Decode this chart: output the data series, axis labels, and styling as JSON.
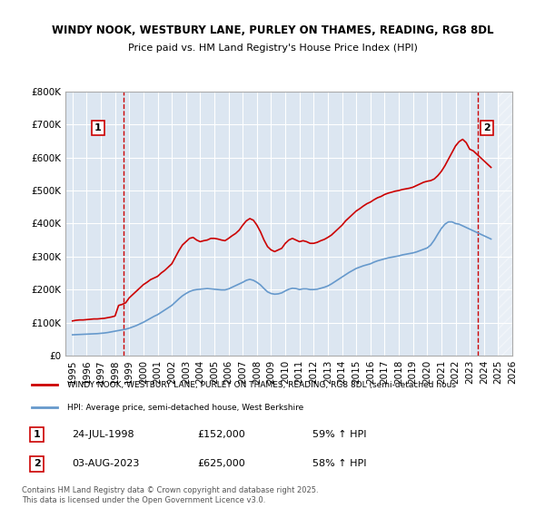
{
  "title1": "WINDY NOOK, WESTBURY LANE, PURLEY ON THAMES, READING, RG8 8DL",
  "title2": "Price paid vs. HM Land Registry's House Price Index (HPI)",
  "legend_line1": "WINDY NOOK, WESTBURY LANE, PURLEY ON THAMES, READING, RG8 8DL (semi-detached hous",
  "legend_line2": "HPI: Average price, semi-detached house, West Berkshire",
  "annotation1_label": "1",
  "annotation1_date": "24-JUL-1998",
  "annotation1_price": "£152,000",
  "annotation1_hpi": "59% ↑ HPI",
  "annotation2_label": "2",
  "annotation2_date": "03-AUG-2023",
  "annotation2_price": "£625,000",
  "annotation2_hpi": "58% ↑ HPI",
  "footnote": "Contains HM Land Registry data © Crown copyright and database right 2025.\nThis data is licensed under the Open Government Licence v3.0.",
  "red_color": "#cc0000",
  "blue_color": "#6699cc",
  "background_color": "#dce6f1",
  "plot_bg": "#dce6f1",
  "hatch_color": "#c0c0c0",
  "ylim": [
    0,
    800000
  ],
  "yticks": [
    0,
    100000,
    200000,
    300000,
    400000,
    500000,
    600000,
    700000,
    800000
  ],
  "red_x": [
    1995.0,
    1995.25,
    1995.5,
    1995.75,
    1996.0,
    1996.25,
    1996.5,
    1996.75,
    1997.0,
    1997.25,
    1997.5,
    1997.75,
    1998.0,
    1998.25,
    1998.5,
    1998.75,
    1999.0,
    1999.25,
    1999.5,
    1999.75,
    2000.0,
    2000.25,
    2000.5,
    2000.75,
    2001.0,
    2001.25,
    2001.5,
    2001.75,
    2002.0,
    2002.25,
    2002.5,
    2002.75,
    2003.0,
    2003.25,
    2003.5,
    2003.75,
    2004.0,
    2004.25,
    2004.5,
    2004.75,
    2005.0,
    2005.25,
    2005.5,
    2005.75,
    2006.0,
    2006.25,
    2006.5,
    2006.75,
    2007.0,
    2007.25,
    2007.5,
    2007.75,
    2008.0,
    2008.25,
    2008.5,
    2008.75,
    2009.0,
    2009.25,
    2009.5,
    2009.75,
    2010.0,
    2010.25,
    2010.5,
    2010.75,
    2011.0,
    2011.25,
    2011.5,
    2011.75,
    2012.0,
    2012.25,
    2012.5,
    2012.75,
    2013.0,
    2013.25,
    2013.5,
    2013.75,
    2014.0,
    2014.25,
    2014.5,
    2014.75,
    2015.0,
    2015.25,
    2015.5,
    2015.75,
    2016.0,
    2016.25,
    2016.5,
    2016.75,
    2017.0,
    2017.25,
    2017.5,
    2017.75,
    2018.0,
    2018.25,
    2018.5,
    2018.75,
    2019.0,
    2019.25,
    2019.5,
    2019.75,
    2020.0,
    2020.25,
    2020.5,
    2020.75,
    2021.0,
    2021.25,
    2021.5,
    2021.75,
    2022.0,
    2022.25,
    2022.5,
    2022.75,
    2023.0,
    2023.25,
    2023.5,
    2023.75,
    2024.0,
    2024.25,
    2024.5
  ],
  "red_y": [
    105000,
    107000,
    108000,
    108000,
    109000,
    110000,
    111000,
    111000,
    112000,
    113000,
    115000,
    117000,
    120000,
    152000,
    155000,
    160000,
    175000,
    185000,
    195000,
    205000,
    215000,
    222000,
    230000,
    235000,
    240000,
    250000,
    258000,
    268000,
    278000,
    298000,
    318000,
    335000,
    345000,
    355000,
    358000,
    350000,
    345000,
    348000,
    350000,
    355000,
    355000,
    353000,
    350000,
    348000,
    355000,
    363000,
    370000,
    380000,
    395000,
    408000,
    415000,
    410000,
    395000,
    375000,
    350000,
    330000,
    320000,
    315000,
    320000,
    325000,
    340000,
    350000,
    355000,
    350000,
    345000,
    348000,
    345000,
    340000,
    340000,
    343000,
    348000,
    352000,
    358000,
    365000,
    375000,
    385000,
    395000,
    408000,
    418000,
    428000,
    438000,
    445000,
    453000,
    460000,
    465000,
    472000,
    478000,
    482000,
    488000,
    492000,
    495000,
    498000,
    500000,
    503000,
    505000,
    507000,
    510000,
    515000,
    520000,
    525000,
    528000,
    530000,
    535000,
    545000,
    558000,
    575000,
    595000,
    615000,
    635000,
    648000,
    655000,
    645000,
    625000,
    620000,
    610000,
    600000,
    590000,
    580000,
    570000
  ],
  "blue_x": [
    1995.0,
    1995.25,
    1995.5,
    1995.75,
    1996.0,
    1996.25,
    1996.5,
    1996.75,
    1997.0,
    1997.25,
    1997.5,
    1997.75,
    1998.0,
    1998.25,
    1998.5,
    1998.75,
    1999.0,
    1999.25,
    1999.5,
    1999.75,
    2000.0,
    2000.25,
    2000.5,
    2000.75,
    2001.0,
    2001.25,
    2001.5,
    2001.75,
    2002.0,
    2002.25,
    2002.5,
    2002.75,
    2003.0,
    2003.25,
    2003.5,
    2003.75,
    2004.0,
    2004.25,
    2004.5,
    2004.75,
    2005.0,
    2005.25,
    2005.5,
    2005.75,
    2006.0,
    2006.25,
    2006.5,
    2006.75,
    2007.0,
    2007.25,
    2007.5,
    2007.75,
    2008.0,
    2008.25,
    2008.5,
    2008.75,
    2009.0,
    2009.25,
    2009.5,
    2009.75,
    2010.0,
    2010.25,
    2010.5,
    2010.75,
    2011.0,
    2011.25,
    2011.5,
    2011.75,
    2012.0,
    2012.25,
    2012.5,
    2012.75,
    2013.0,
    2013.25,
    2013.5,
    2013.75,
    2014.0,
    2014.25,
    2014.5,
    2014.75,
    2015.0,
    2015.25,
    2015.5,
    2015.75,
    2016.0,
    2016.25,
    2016.5,
    2016.75,
    2017.0,
    2017.25,
    2017.5,
    2017.75,
    2018.0,
    2018.25,
    2018.5,
    2018.75,
    2019.0,
    2019.25,
    2019.5,
    2019.75,
    2020.0,
    2020.25,
    2020.5,
    2020.75,
    2021.0,
    2021.25,
    2021.5,
    2021.75,
    2022.0,
    2022.25,
    2022.5,
    2022.75,
    2023.0,
    2023.25,
    2023.5,
    2023.75,
    2024.0,
    2024.25,
    2024.5
  ],
  "blue_y": [
    63000,
    63500,
    64000,
    64500,
    65000,
    65500,
    66000,
    66500,
    67500,
    68500,
    70000,
    72000,
    74000,
    76000,
    78000,
    80000,
    83000,
    87000,
    91000,
    96000,
    101000,
    107000,
    113000,
    119000,
    124000,
    131000,
    138000,
    145000,
    152000,
    162000,
    172000,
    181000,
    188000,
    194000,
    198000,
    200000,
    201000,
    202000,
    203000,
    202000,
    201000,
    200000,
    199000,
    199000,
    202000,
    207000,
    212000,
    217000,
    222000,
    228000,
    231000,
    228000,
    222000,
    214000,
    203000,
    193000,
    188000,
    186000,
    187000,
    190000,
    196000,
    201000,
    204000,
    203000,
    200000,
    202000,
    202000,
    200000,
    200000,
    201000,
    204000,
    207000,
    211000,
    217000,
    224000,
    231000,
    238000,
    245000,
    252000,
    258000,
    264000,
    268000,
    272000,
    275000,
    278000,
    283000,
    287000,
    290000,
    293000,
    296000,
    298000,
    300000,
    302000,
    305000,
    307000,
    309000,
    311000,
    314000,
    318000,
    322000,
    326000,
    335000,
    350000,
    368000,
    385000,
    398000,
    405000,
    405000,
    400000,
    398000,
    393000,
    388000,
    383000,
    378000,
    373000,
    368000,
    363000,
    358000,
    353000
  ],
  "sale1_x": 1998.57,
  "sale1_y": 152000,
  "sale2_x": 2023.58,
  "sale2_y": 625000,
  "ann1_x": 1996.8,
  "ann1_y": 690000,
  "ann2_x": 2024.2,
  "ann2_y": 690000,
  "vline1_x": 1998.57,
  "vline2_x": 2023.58,
  "xlim_left": 1994.5,
  "xlim_right": 2026.0
}
